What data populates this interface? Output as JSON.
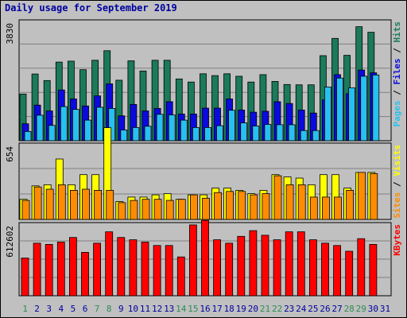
{
  "title": "Daily usage for September 2019",
  "colors": {
    "hits": "#1b7a5a",
    "files": "#0a0adf",
    "pages": "#28c0f0",
    "visits": "#ffff00",
    "sites": "#ff8c00",
    "kbytes": "#ff0000",
    "weekend_label": "#2e8b57",
    "weekday_label": "#0000a0",
    "title": "#0000a0"
  },
  "chart_data": [
    {
      "type": "bar",
      "panel": "top",
      "title": "Daily usage for September 2019",
      "ymax_label": "3830",
      "ymax": 3830,
      "y_axis_labels": [
        "Pages",
        "Files",
        "Hits"
      ],
      "categories": [
        "1",
        "2",
        "3",
        "4",
        "5",
        "6",
        "7",
        "8",
        "9",
        "10",
        "11",
        "12",
        "13",
        "14",
        "15",
        "16",
        "17",
        "18",
        "19",
        "20",
        "21",
        "22",
        "23",
        "24",
        "25",
        "26",
        "27",
        "28",
        "29",
        "30",
        "31"
      ],
      "weekend_days": [
        "1",
        "7",
        "8",
        "14",
        "15",
        "21",
        "22",
        "28",
        "29"
      ],
      "series": [
        {
          "name": "Hits",
          "values": [
            1520,
            2170,
            1960,
            2560,
            2590,
            2310,
            2620,
            2930,
            1970,
            2600,
            2270,
            2620,
            2620,
            2010,
            1910,
            2180,
            2120,
            2180,
            2100,
            1910,
            2150,
            1930,
            1830,
            1820,
            1820,
            2770,
            3330,
            2780,
            3710,
            3530,
            0
          ]
        },
        {
          "name": "Files",
          "values": [
            550,
            1160,
            970,
            1650,
            1360,
            1130,
            1460,
            1850,
            810,
            1180,
            970,
            1050,
            1270,
            870,
            870,
            1060,
            1060,
            1360,
            1000,
            930,
            960,
            1270,
            1210,
            1000,
            900,
            1330,
            2150,
            1530,
            2300,
            2210,
            0
          ]
        },
        {
          "name": "Pages",
          "values": [
            300,
            830,
            500,
            1110,
            1020,
            670,
            1090,
            1050,
            350,
            430,
            470,
            860,
            840,
            670,
            430,
            430,
            490,
            990,
            580,
            480,
            530,
            520,
            520,
            330,
            330,
            1750,
            2040,
            1720,
            2100,
            2140,
            0
          ]
        }
      ]
    },
    {
      "type": "bar",
      "panel": "middle",
      "ymax_label": "654",
      "ymax": 654,
      "y_axis_labels": [
        "Sites",
        "Visits"
      ],
      "categories": [
        "1",
        "2",
        "3",
        "4",
        "5",
        "6",
        "7",
        "8",
        "9",
        "10",
        "11",
        "12",
        "13",
        "14",
        "15",
        "16",
        "17",
        "18",
        "19",
        "20",
        "21",
        "22",
        "23",
        "24",
        "25",
        "26",
        "27",
        "28",
        "29",
        "30",
        "31"
      ],
      "series": [
        {
          "name": "Visits",
          "values": [
            180,
            300,
            310,
            540,
            310,
            400,
            400,
            820,
            160,
            200,
            200,
            220,
            230,
            180,
            220,
            220,
            280,
            280,
            260,
            230,
            260,
            400,
            380,
            370,
            310,
            400,
            400,
            280,
            420,
            420,
            0
          ]
        },
        {
          "name": "Sites",
          "values": [
            170,
            290,
            270,
            310,
            260,
            270,
            260,
            260,
            150,
            170,
            180,
            180,
            170,
            180,
            220,
            190,
            240,
            250,
            250,
            220,
            230,
            390,
            310,
            310,
            200,
            200,
            200,
            260,
            420,
            410,
            0
          ]
        }
      ]
    },
    {
      "type": "bar",
      "panel": "bottom",
      "ymax_label": "612602",
      "ymax": 612602,
      "y_axis_labels": [
        "KBytes"
      ],
      "categories": [
        "1",
        "2",
        "3",
        "4",
        "5",
        "6",
        "7",
        "8",
        "9",
        "10",
        "11",
        "12",
        "13",
        "14",
        "15",
        "16",
        "17",
        "18",
        "19",
        "20",
        "21",
        "22",
        "23",
        "24",
        "25",
        "26",
        "27",
        "28",
        "29",
        "30",
        "31"
      ],
      "series": [
        {
          "name": "KBytes",
          "values": [
            330000,
            460000,
            450000,
            470000,
            510000,
            380000,
            460000,
            560000,
            510000,
            490000,
            470000,
            440000,
            440000,
            340000,
            620000,
            660000,
            490000,
            460000,
            520000,
            570000,
            530000,
            490000,
            560000,
            560000,
            490000,
            460000,
            440000,
            390000,
            500000,
            450000,
            0
          ]
        }
      ]
    }
  ]
}
